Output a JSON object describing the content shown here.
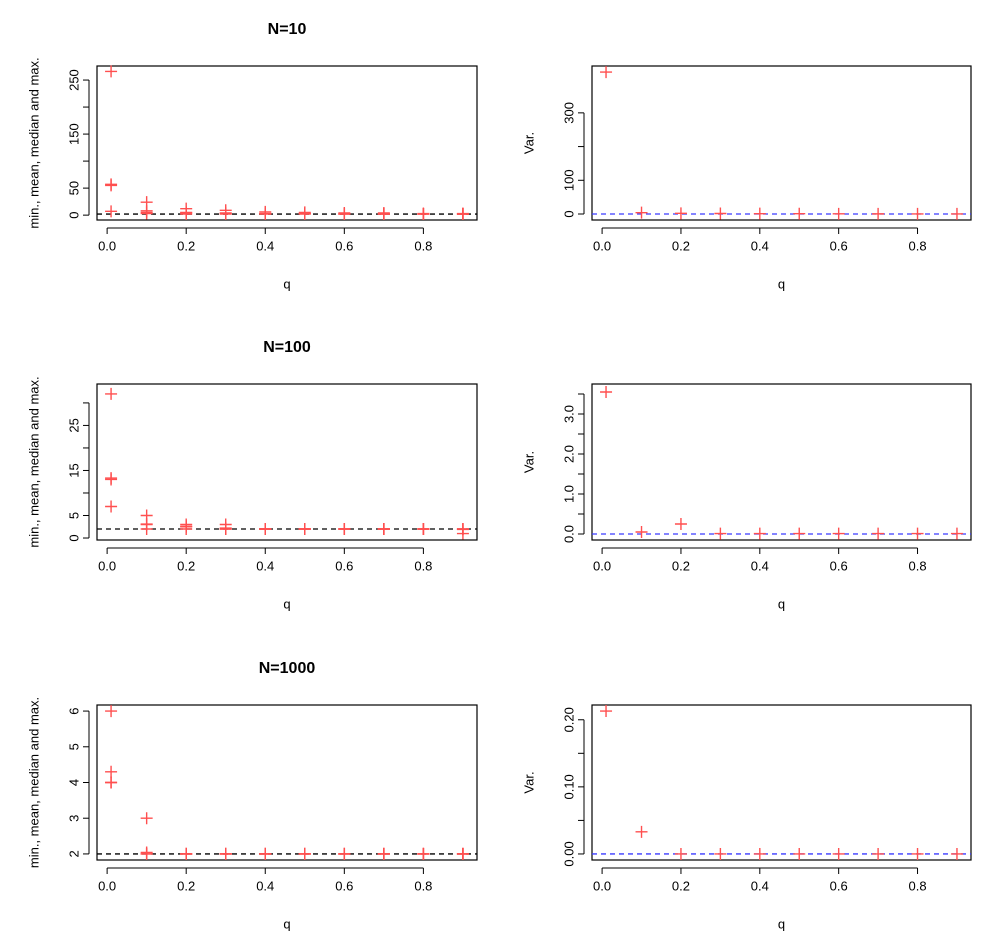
{
  "chart_data": [
    {
      "type": "scatter",
      "title": "N=10",
      "xlabel": "q",
      "ylabel": "min., mean, median and max.",
      "x": [
        0.01,
        0.1,
        0.2,
        0.3,
        0.4,
        0.5,
        0.6,
        0.7,
        0.8,
        0.9
      ],
      "series": [
        {
          "color": "#ff4f4f",
          "values": [
            7,
            3,
            2,
            2,
            2,
            2,
            2,
            2,
            2,
            2
          ]
        },
        {
          "color": "#ff4f4f",
          "values": [
            57,
            8,
            5,
            4,
            3,
            3,
            2.5,
            2.3,
            2.2,
            2.1
          ]
        },
        {
          "color": "#ff4f4f",
          "values": [
            55,
            5,
            4,
            3,
            3,
            3,
            2,
            2,
            2,
            2
          ]
        },
        {
          "color": "#ff4f4f",
          "values": [
            266,
            24,
            12,
            9,
            6,
            5,
            4,
            4,
            3,
            3
          ]
        }
      ],
      "xlim": [
        -0.0256,
        0.9356
      ],
      "ylim": [
        -9,
        276
      ],
      "xticks": [
        {
          "value": 0,
          "label": "0.0"
        },
        {
          "value": 0.2,
          "label": "0.2"
        },
        {
          "value": 0.4,
          "label": "0.4"
        },
        {
          "value": 0.6,
          "label": "0.6"
        },
        {
          "value": 0.8,
          "label": "0.8"
        }
      ],
      "yticks": [
        0,
        50,
        150,
        250
      ],
      "yminorticks": [
        100,
        200
      ],
      "hline": {
        "value": 2,
        "color": "#000000"
      }
    },
    {
      "type": "scatter",
      "xlabel": "q",
      "ylabel": "Var.",
      "x": [
        0.01,
        0.1,
        0.2,
        0.3,
        0.4,
        0.5,
        0.6,
        0.7,
        0.8,
        0.9
      ],
      "series": [
        {
          "color": "#ff4f4f",
          "values": [
            421,
            4,
            2,
            1.5,
            1,
            0.8,
            0.5,
            0.4,
            0.3,
            0.2
          ]
        }
      ],
      "xlim": [
        -0.0256,
        0.9356
      ],
      "ylim": [
        -17.8,
        439
      ],
      "xticks": [
        {
          "value": 0,
          "label": "0.0"
        },
        {
          "value": 0.2,
          "label": "0.2"
        },
        {
          "value": 0.4,
          "label": "0.4"
        },
        {
          "value": 0.6,
          "label": "0.6"
        },
        {
          "value": 0.8,
          "label": "0.8"
        }
      ],
      "yticks": [
        0,
        100,
        300
      ],
      "yminorticks": [
        200
      ],
      "hline": {
        "value": 0,
        "color": "#3a3aff"
      }
    },
    {
      "type": "scatter",
      "title": "N=100",
      "xlabel": "q",
      "ylabel": "min., mean, median and max.",
      "x": [
        0.01,
        0.1,
        0.2,
        0.3,
        0.4,
        0.5,
        0.6,
        0.7,
        0.8,
        0.9
      ],
      "series": [
        {
          "color": "#ff4f4f",
          "values": [
            7,
            2,
            2,
            2,
            2,
            2,
            2,
            2,
            2,
            1
          ]
        },
        {
          "color": "#ff4f4f",
          "values": [
            13.3,
            3.1,
            2.6,
            2.2,
            2,
            2,
            2,
            2,
            2,
            1.9
          ]
        },
        {
          "color": "#ff4f4f",
          "values": [
            13,
            3,
            2.5,
            2,
            2,
            2,
            2,
            2,
            2,
            2
          ]
        },
        {
          "color": "#ff4f4f",
          "values": [
            32,
            5,
            3,
            3,
            2,
            2,
            2,
            2,
            2,
            2
          ]
        }
      ],
      "xlim": [
        -0.0256,
        0.9356
      ],
      "ylim": [
        -0.44,
        34.2
      ],
      "xticks": [
        {
          "value": 0,
          "label": "0.0"
        },
        {
          "value": 0.2,
          "label": "0.2"
        },
        {
          "value": 0.4,
          "label": "0.4"
        },
        {
          "value": 0.6,
          "label": "0.6"
        },
        {
          "value": 0.8,
          "label": "0.8"
        }
      ],
      "yticks": [
        0,
        5,
        15,
        25
      ],
      "yminorticks": [
        10,
        20,
        30
      ],
      "hline": {
        "value": 2,
        "color": "#000000"
      }
    },
    {
      "type": "scatter",
      "xlabel": "q",
      "ylabel": "Var.",
      "x": [
        0.01,
        0.1,
        0.2,
        0.3,
        0.4,
        0.5,
        0.6,
        0.7,
        0.8,
        0.9
      ],
      "series": [
        {
          "color": "#ff4f4f",
          "values": [
            3.55,
            0.05,
            0.25,
            0.01,
            0.01,
            0.01,
            0.01,
            0.01,
            0.01,
            0.01
          ]
        }
      ],
      "xlim": [
        -0.0256,
        0.9356
      ],
      "ylim": [
        -0.15,
        3.75
      ],
      "xticks": [
        {
          "value": 0,
          "label": "0.0"
        },
        {
          "value": 0.2,
          "label": "0.2"
        },
        {
          "value": 0.4,
          "label": "0.4"
        },
        {
          "value": 0.6,
          "label": "0.6"
        },
        {
          "value": 0.8,
          "label": "0.8"
        }
      ],
      "yticks": [
        {
          "value": 0,
          "label": "0.0"
        },
        {
          "value": 1,
          "label": "1.0"
        },
        {
          "value": 2,
          "label": "2.0"
        },
        {
          "value": 3,
          "label": "3.0"
        }
      ],
      "yminorticks": [
        0.5,
        1.5,
        2.5,
        3.5
      ],
      "hline": {
        "value": 0,
        "color": "#3a3aff"
      }
    },
    {
      "type": "scatter",
      "title": "N=1000",
      "xlabel": "q",
      "ylabel": "min., mean, median and max.",
      "x": [
        0.01,
        0.1,
        0.2,
        0.3,
        0.4,
        0.5,
        0.6,
        0.7,
        0.8,
        0.9
      ],
      "series": [
        {
          "color": "#ff4f4f",
          "values": [
            4,
            2,
            2,
            2,
            2,
            2,
            2,
            2,
            2,
            2
          ]
        },
        {
          "color": "#ff4f4f",
          "values": [
            4.3,
            2.04,
            2,
            2,
            2,
            2,
            2,
            2,
            2,
            2
          ]
        },
        {
          "color": "#ff4f4f",
          "values": [
            4,
            2,
            2,
            2,
            2,
            2,
            2,
            2,
            2,
            2
          ]
        },
        {
          "color": "#ff4f4f",
          "values": [
            6,
            3,
            2,
            2,
            2,
            2,
            2,
            2,
            2,
            2
          ]
        }
      ],
      "xlim": [
        -0.0256,
        0.9356
      ],
      "ylim": [
        1.83,
        6.17
      ],
      "xticks": [
        {
          "value": 0,
          "label": "0.0"
        },
        {
          "value": 0.2,
          "label": "0.2"
        },
        {
          "value": 0.4,
          "label": "0.4"
        },
        {
          "value": 0.6,
          "label": "0.6"
        },
        {
          "value": 0.8,
          "label": "0.8"
        }
      ],
      "yticks": [
        2,
        3,
        4,
        5,
        6
      ],
      "yminorticks": [],
      "hline": {
        "value": 2,
        "color": "#000000"
      }
    },
    {
      "type": "scatter",
      "xlabel": "q",
      "ylabel": "Var.",
      "x": [
        0.01,
        0.1,
        0.2,
        0.3,
        0.4,
        0.5,
        0.6,
        0.7,
        0.8,
        0.9
      ],
      "series": [
        {
          "color": "#ff4f4f",
          "values": [
            0.213,
            0.033,
            0,
            0,
            0,
            0,
            0,
            0,
            0,
            0
          ]
        }
      ],
      "xlim": [
        -0.0256,
        0.9356
      ],
      "ylim": [
        -0.009,
        0.222
      ],
      "xticks": [
        {
          "value": 0,
          "label": "0.0"
        },
        {
          "value": 0.2,
          "label": "0.2"
        },
        {
          "value": 0.4,
          "label": "0.4"
        },
        {
          "value": 0.6,
          "label": "0.6"
        },
        {
          "value": 0.8,
          "label": "0.8"
        }
      ],
      "yticks": [
        {
          "value": 0,
          "label": "0.00"
        },
        {
          "value": 0.1,
          "label": "0.10"
        },
        {
          "value": 0.2,
          "label": "0.20"
        }
      ],
      "yminorticks": [
        0.05,
        0.15
      ],
      "hline": {
        "value": 0,
        "color": "#3a3aff"
      }
    }
  ]
}
